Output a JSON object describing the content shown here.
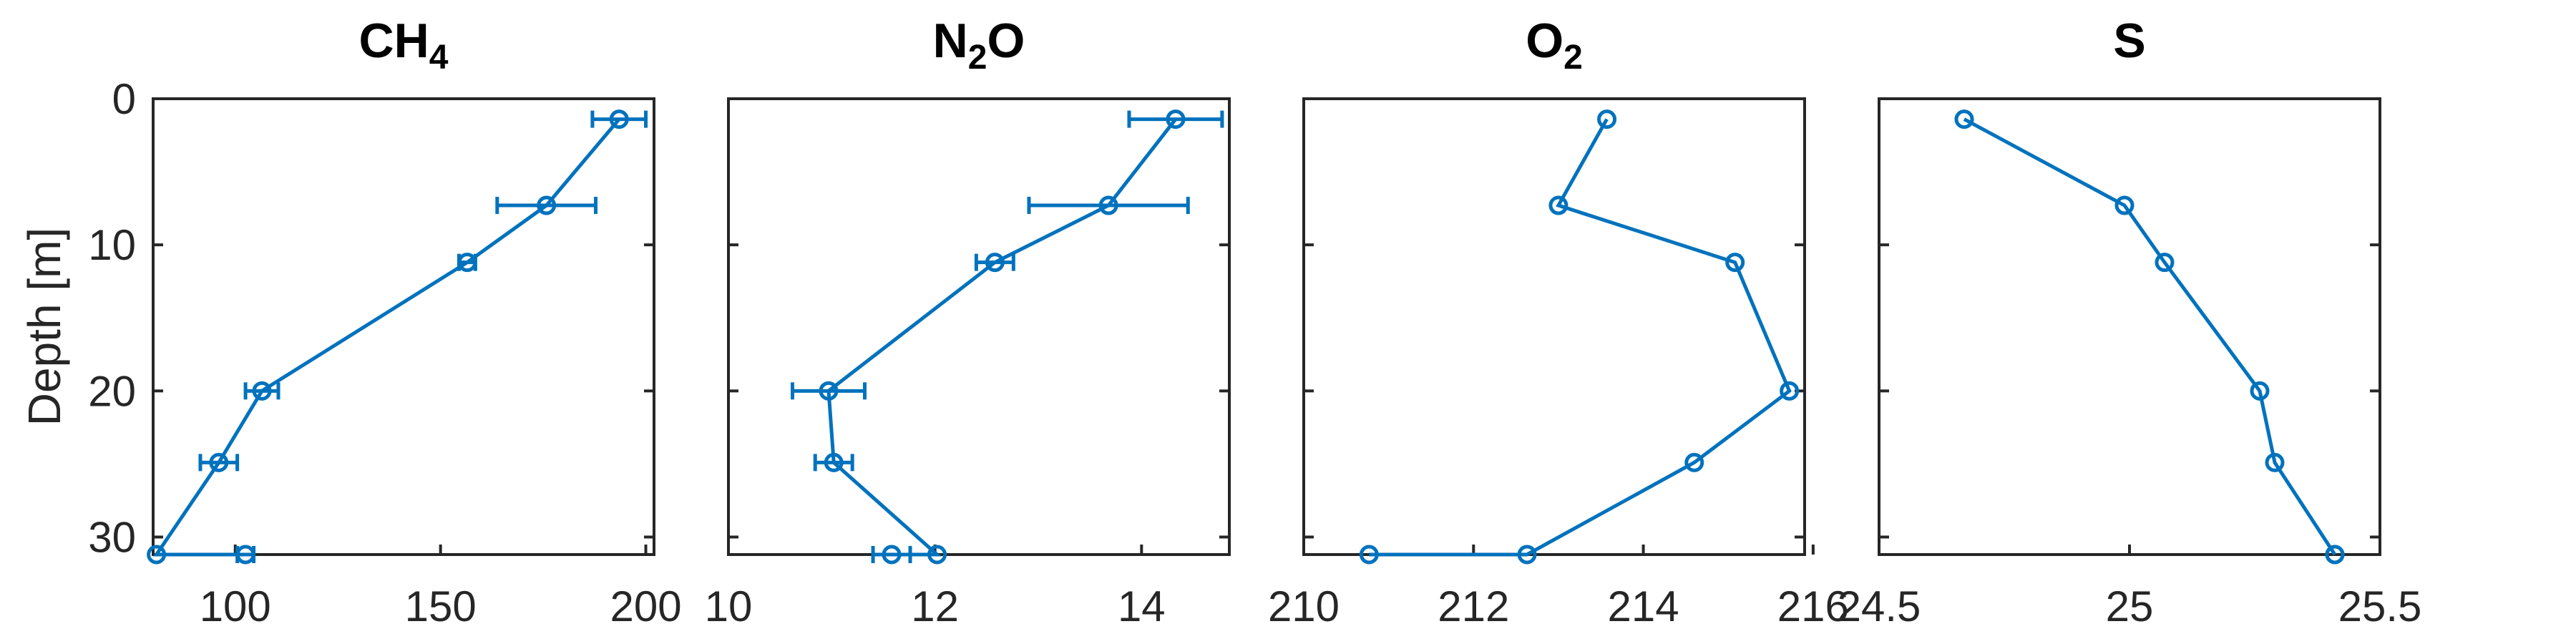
{
  "colors": {
    "series": "#0072BD",
    "axis": "#262626",
    "title": "#000000"
  },
  "chart_data": [
    {
      "type": "line",
      "title": "CH",
      "title_subscript": "4",
      "xlabel": "",
      "ylabel": "Depth [m]",
      "xlim": [
        80,
        202
      ],
      "ylim": [
        0,
        31.2
      ],
      "y_reversed": true,
      "xticks": [
        100,
        150,
        200
      ],
      "yticks": [
        0,
        10,
        20,
        30
      ],
      "xtick_labels": [
        "100",
        "150",
        "200"
      ],
      "ytick_labels": [
        "0",
        "10",
        "20",
        "30"
      ],
      "series": [
        {
          "name": "CH4",
          "x": [
            193.5,
            175.8,
            156.5,
            106.5,
            96.0,
            80.8,
            102.5
          ],
          "y": [
            1.4,
            7.3,
            11.2,
            20.0,
            24.9,
            31.2,
            31.2
          ],
          "xerr": [
            6.5,
            12.0,
            2.0,
            4.0,
            4.5,
            0,
            2.0
          ]
        }
      ]
    },
    {
      "type": "line",
      "title": "N",
      "title_subscript": "2",
      "title_suffix": "O",
      "xlabel": "",
      "ylabel": "",
      "xlim": [
        10,
        14.85
      ],
      "ylim": [
        0,
        31.2
      ],
      "y_reversed": true,
      "xticks": [
        10,
        12,
        14
      ],
      "yticks": [
        0,
        10,
        20,
        30
      ],
      "xtick_labels": [
        "10",
        "12",
        "14"
      ],
      "ytick_labels": [],
      "series": [
        {
          "name": "N2O",
          "x": [
            14.33,
            13.68,
            12.58,
            10.97,
            11.02,
            12.02,
            11.58
          ],
          "y": [
            1.4,
            7.3,
            11.2,
            20.0,
            24.9,
            31.2,
            31.2
          ],
          "xerr": [
            0.45,
            0.77,
            0.18,
            0.35,
            0.18,
            0,
            0.18
          ]
        }
      ]
    },
    {
      "type": "line",
      "title": "O",
      "title_subscript": "2",
      "xlabel": "",
      "ylabel": "",
      "xlim": [
        210,
        215.9
      ],
      "ylim": [
        0,
        31.2
      ],
      "y_reversed": true,
      "xticks": [
        210,
        212,
        214,
        216
      ],
      "yticks": [
        0,
        10,
        20,
        30
      ],
      "xtick_labels": [
        "210",
        "212",
        "214",
        "216"
      ],
      "ytick_labels": [],
      "series": [
        {
          "name": "O2",
          "x": [
            213.57,
            213.0,
            215.08,
            215.72,
            214.6,
            212.63,
            210.77
          ],
          "y": [
            1.4,
            7.3,
            11.2,
            20.0,
            24.9,
            31.2,
            31.2
          ],
          "xerr": [
            0,
            0,
            0,
            0,
            0,
            0,
            0
          ]
        }
      ]
    },
    {
      "type": "line",
      "title": "S",
      "xlabel": "",
      "ylabel": "",
      "xlim": [
        24.5,
        25.5
      ],
      "ylim": [
        0,
        31.2
      ],
      "y_reversed": true,
      "xticks": [
        24.5,
        25,
        25.5
      ],
      "yticks": [
        0,
        10,
        20,
        30
      ],
      "xtick_labels": [
        "24.5",
        "25",
        "25.5"
      ],
      "ytick_labels": [],
      "series": [
        {
          "name": "S",
          "x": [
            24.67,
            24.99,
            25.07,
            25.26,
            25.29,
            25.41,
            25.41
          ],
          "y": [
            1.4,
            7.3,
            11.2,
            20.0,
            24.9,
            31.2,
            31.2
          ],
          "xerr": [
            0,
            0,
            0,
            0,
            0,
            0,
            0
          ]
        }
      ]
    }
  ]
}
